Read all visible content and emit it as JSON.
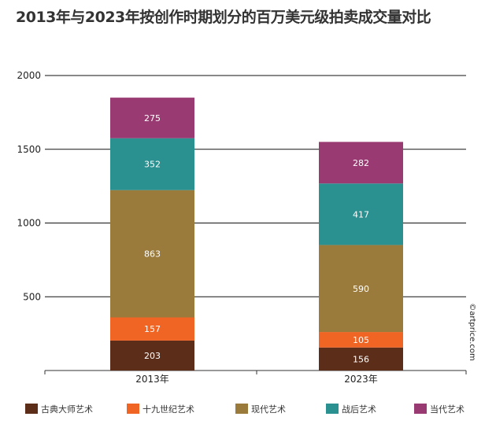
{
  "chart_data": {
    "type": "bar",
    "stacked": true,
    "title": "2013年与2023年按创作时期划分的百万美元级拍卖成交量对比",
    "categories": [
      "2013年",
      "2023年"
    ],
    "series": [
      {
        "name": "古典大师艺术",
        "color": "#5c2e1a",
        "values": [
          203,
          156
        ]
      },
      {
        "name": "十九世纪艺术",
        "color": "#f06424",
        "values": [
          157,
          105
        ]
      },
      {
        "name": "现代艺术",
        "color": "#9a7b3c",
        "values": [
          863,
          590
        ]
      },
      {
        "name": "战后艺术",
        "color": "#2a9090",
        "values": [
          352,
          417
        ]
      },
      {
        "name": "当代艺术",
        "color": "#9a3a72",
        "values": [
          275,
          282
        ]
      }
    ],
    "yticks": [
      500,
      1000,
      1500,
      2000
    ],
    "ylim": [
      0,
      2000
    ],
    "grid": true,
    "legend": "bottom",
    "watermark": "©artprice.com"
  }
}
